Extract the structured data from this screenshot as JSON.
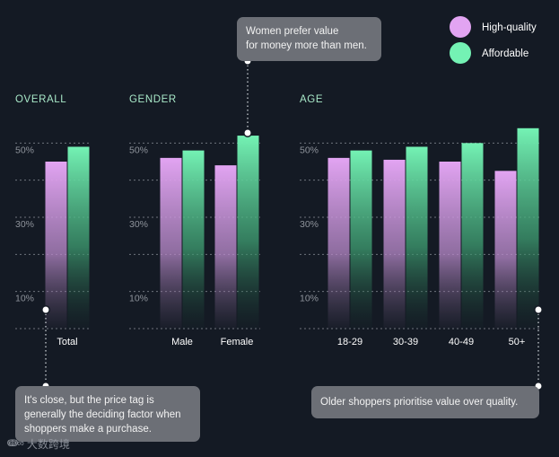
{
  "chart_data": {
    "type": "bar",
    "series": [
      {
        "name": "High-quality",
        "color": "#e2a4f2"
      },
      {
        "name": "Affordable",
        "color": "#74f2b4"
      }
    ],
    "groups": [
      {
        "title": "OVERALL",
        "categories": [
          "Total"
        ],
        "values": {
          "High-quality": [
            45
          ],
          "Affordable": [
            49
          ]
        }
      },
      {
        "title": "GENDER",
        "categories": [
          "Male",
          "Female"
        ],
        "values": {
          "High-quality": [
            46,
            44
          ],
          "Affordable": [
            48,
            52
          ]
        }
      },
      {
        "title": "AGE",
        "categories": [
          "18-29",
          "30-39",
          "40-49",
          "50+"
        ],
        "values": {
          "High-quality": [
            46,
            45.5,
            45,
            42.5
          ],
          "Affordable": [
            48,
            49,
            50,
            54
          ]
        }
      }
    ],
    "y_ticks": [
      "50%",
      "30%",
      "10%"
    ],
    "y_tick_values": [
      50,
      30,
      10
    ],
    "ylim": [
      0,
      60
    ],
    "grid": true,
    "legend_position": "top-right"
  },
  "annotations": {
    "gender_note": [
      "Women prefer value",
      "for money more than men."
    ],
    "overall_note": [
      "It's close, but the price tag is",
      "generally the deciding factor when",
      "shoppers make a purchase."
    ],
    "age_note": [
      "Older shoppers prioritise value over quality."
    ]
  },
  "watermark": {
    "logo": "ↈ∞",
    "text": "大数跨境"
  },
  "colors": {
    "background": "#141a24",
    "label": "#a8e8c8",
    "tick": "#8e939b",
    "category": "#ffffff",
    "grid": "#6e737c",
    "callout": "#6c6f76"
  }
}
